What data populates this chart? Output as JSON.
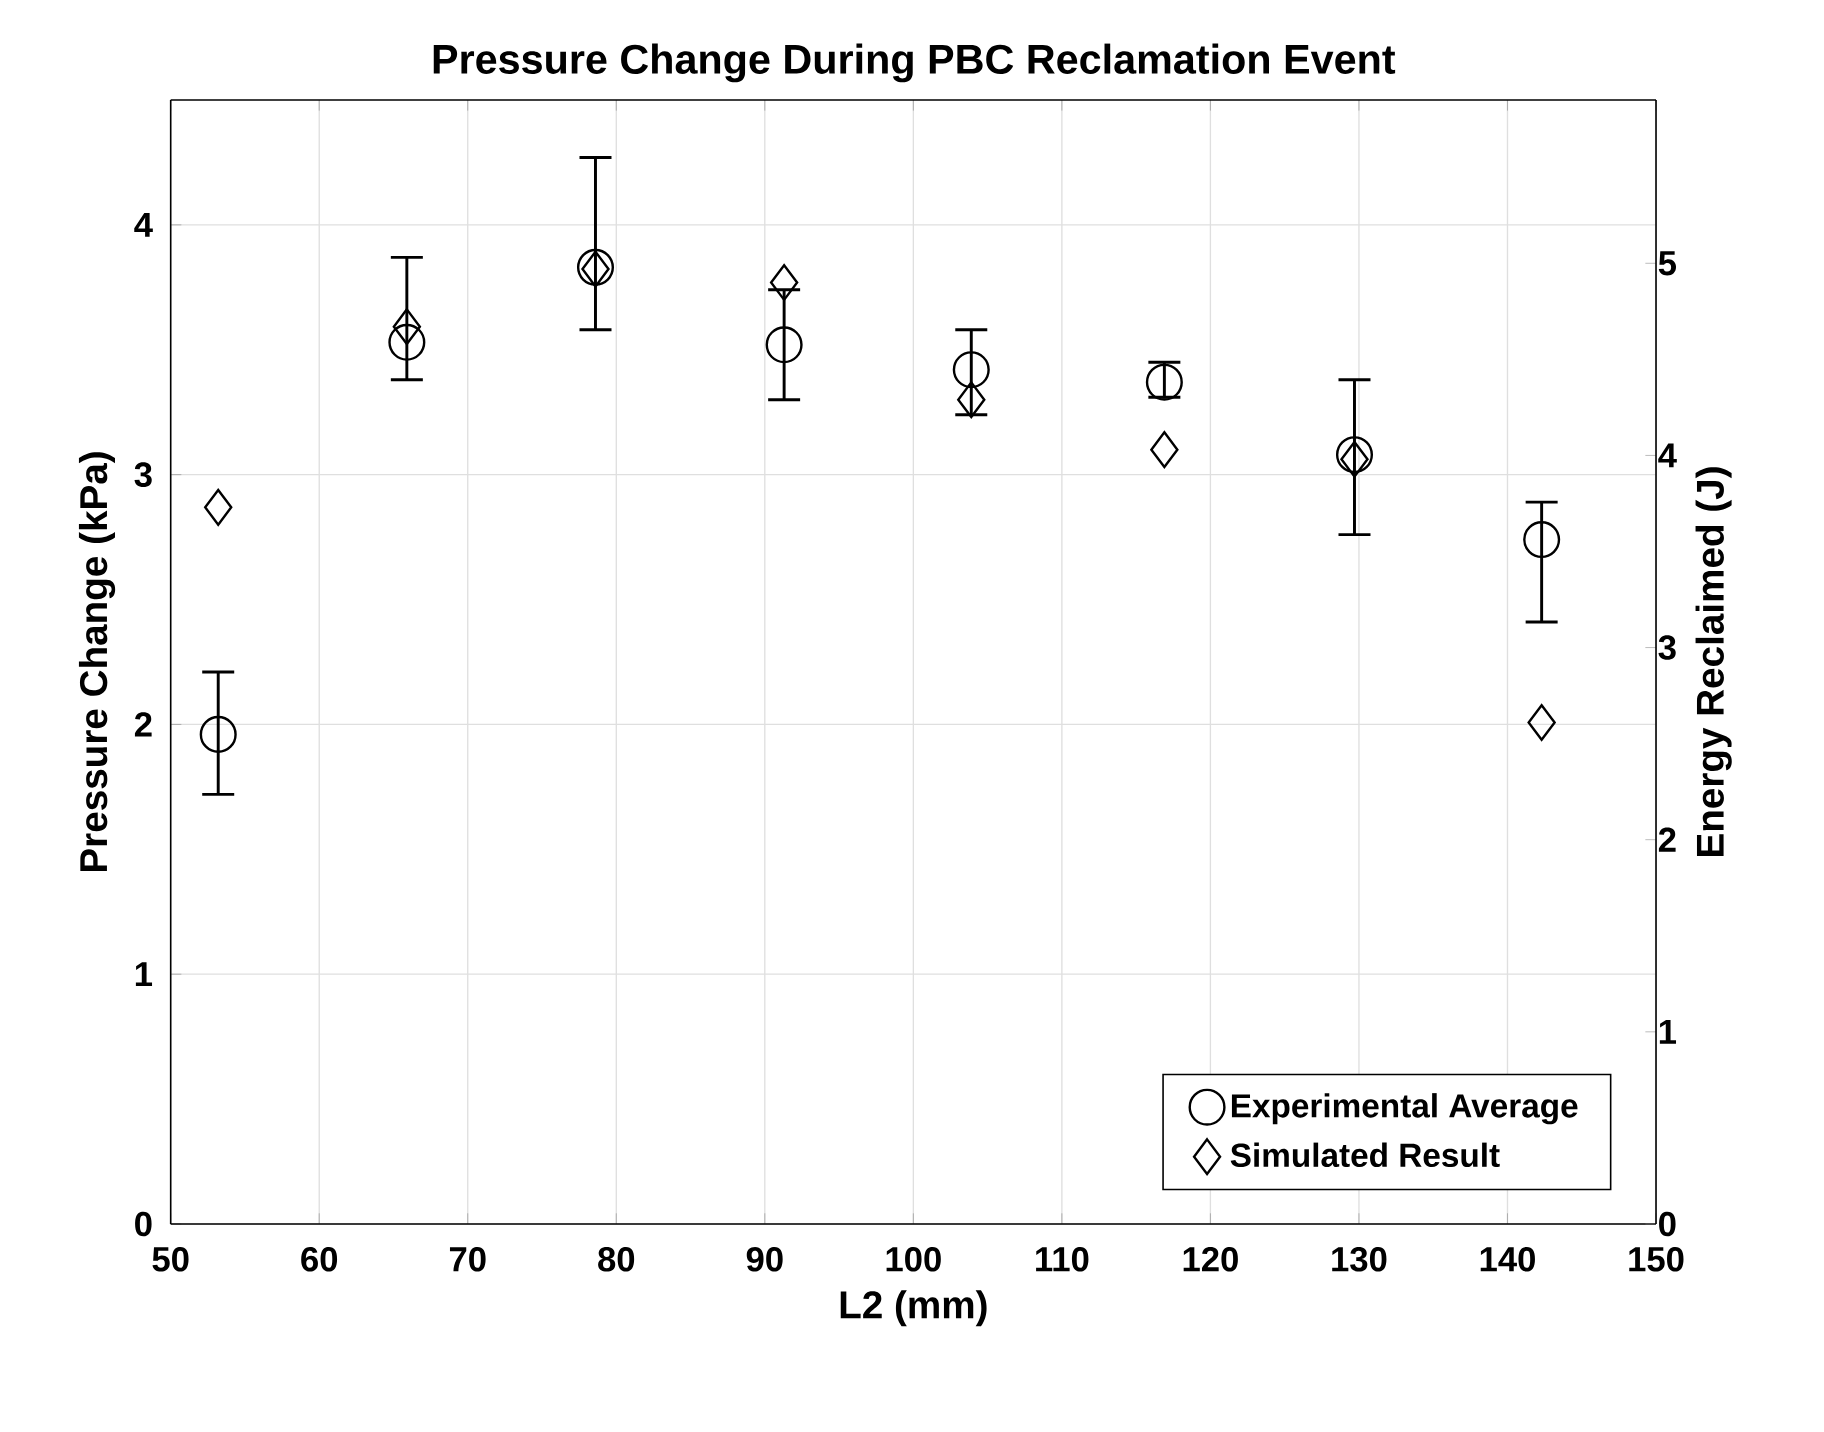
{
  "chart_data": {
    "type": "scatter",
    "title": "Pressure Change During PBC Reclamation Event",
    "xlabel": "L2 (mm)",
    "ylabel": "Pressure Change (kPa)",
    "y2label": "Energy Reclaimed (J)",
    "xlim": [
      50,
      150
    ],
    "xticks": [
      50,
      60,
      70,
      80,
      90,
      100,
      110,
      120,
      130,
      140,
      150
    ],
    "ylim": [
      0,
      4.5
    ],
    "yticks": [
      0,
      1,
      2,
      3,
      4
    ],
    "y2lim": [
      0,
      5.85
    ],
    "y2ticks": [
      0,
      1,
      2,
      3,
      4,
      5
    ],
    "grid": true,
    "legend": "bottom right",
    "series": [
      {
        "name": "Experimental Average",
        "color": "#000000",
        "marker": "circle",
        "x": [
          53.2,
          65.9,
          78.6,
          91.3,
          103.9,
          116.9,
          129.7,
          142.3
        ],
        "values": [
          1.96,
          3.53,
          3.83,
          3.52,
          3.42,
          3.37,
          3.08,
          2.74
        ],
        "errors": [
          [
            1.72,
            2.21
          ],
          [
            3.38,
            3.87
          ],
          [
            3.58,
            4.27
          ],
          [
            3.3,
            3.74
          ],
          [
            3.24,
            3.58
          ],
          [
            3.31,
            3.45
          ],
          [
            2.76,
            3.38
          ],
          [
            2.41,
            2.89
          ]
        ]
      },
      {
        "name": "Simulated Result",
        "color": "#000000",
        "marker": "diamond",
        "axis": "y2",
        "x": [
          53.2,
          65.9,
          78.6,
          91.3,
          103.9,
          116.9,
          129.7,
          142.3
        ],
        "values": [
          3.73,
          4.67,
          4.97,
          4.9,
          4.29,
          4.03,
          3.98,
          2.61
        ]
      }
    ]
  }
}
